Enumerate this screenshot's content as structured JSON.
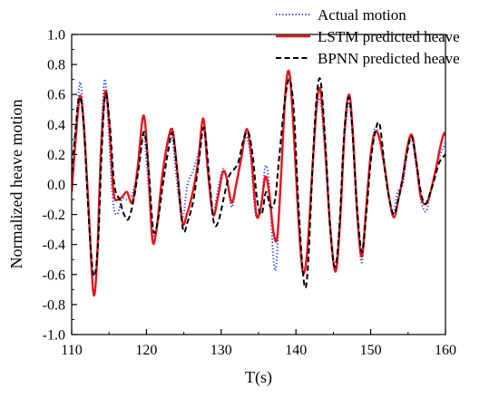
{
  "chart_data": {
    "type": "line",
    "title": "",
    "xlabel": "T(s)",
    "ylabel": "Normalized heave motion",
    "xlim": [
      110,
      160
    ],
    "ylim": [
      -1.0,
      1.0
    ],
    "x_ticks": [
      110,
      120,
      130,
      140,
      150,
      160
    ],
    "x_tick_labels": [
      "110",
      "120",
      "130",
      "140",
      "150",
      "160"
    ],
    "y_ticks": [
      -1.0,
      -0.8,
      -0.6,
      -0.4,
      -0.2,
      0.0,
      0.2,
      0.4,
      0.6,
      0.8,
      1.0
    ],
    "y_tick_labels": [
      "-1.0",
      "-0.8",
      "-0.6",
      "-0.4",
      "-0.2",
      "0.0",
      "0.2",
      "0.4",
      "0.6",
      "0.8",
      "1.0"
    ],
    "grid": false,
    "legend_position": "top-right",
    "series": [
      {
        "name": "Actual motion",
        "color": "#1f3fe0",
        "style": "dotted",
        "points": [
          [
            110,
            -0.02
          ],
          [
            110.5,
            0.3
          ],
          [
            111.1,
            0.68
          ],
          [
            111.6,
            0.45
          ],
          [
            112.2,
            -0.1
          ],
          [
            112.9,
            -0.73
          ],
          [
            113.4,
            -0.45
          ],
          [
            113.9,
            0.25
          ],
          [
            114.4,
            0.7
          ],
          [
            114.9,
            0.4
          ],
          [
            115.5,
            -0.1
          ],
          [
            116.1,
            -0.2
          ],
          [
            116.7,
            -0.1
          ],
          [
            117.4,
            -0.1
          ],
          [
            118.2,
            -0.05
          ],
          [
            119.0,
            0.15
          ],
          [
            119.6,
            0.35
          ],
          [
            120.1,
            0.1
          ],
          [
            120.7,
            -0.28
          ],
          [
            121.3,
            -0.32
          ],
          [
            122.0,
            0.0
          ],
          [
            122.8,
            0.25
          ],
          [
            123.4,
            0.32
          ],
          [
            124.0,
            0.05
          ],
          [
            124.8,
            -0.22
          ],
          [
            125.5,
            0.0
          ],
          [
            126.3,
            0.1
          ],
          [
            127.0,
            0.22
          ],
          [
            127.6,
            0.38
          ],
          [
            128.3,
            0.05
          ],
          [
            128.9,
            -0.2
          ],
          [
            129.5,
            -0.05
          ],
          [
            130.2,
            0.1
          ],
          [
            130.7,
            0.05
          ],
          [
            131.4,
            -0.15
          ],
          [
            132.0,
            0.0
          ],
          [
            132.7,
            0.2
          ],
          [
            133.4,
            0.32
          ],
          [
            134.0,
            0.15
          ],
          [
            134.6,
            -0.2
          ],
          [
            135.3,
            -0.15
          ],
          [
            135.9,
            0.12
          ],
          [
            136.4,
            0.0
          ],
          [
            137.0,
            -0.5
          ],
          [
            137.4,
            -0.52
          ],
          [
            137.9,
            0.0
          ],
          [
            138.6,
            0.6
          ],
          [
            139.1,
            0.73
          ],
          [
            139.6,
            0.4
          ],
          [
            140.3,
            -0.2
          ],
          [
            140.9,
            -0.57
          ],
          [
            141.5,
            -0.45
          ],
          [
            142.2,
            0.1
          ],
          [
            142.8,
            0.5
          ],
          [
            143.3,
            0.55
          ],
          [
            143.9,
            0.2
          ],
          [
            144.6,
            -0.3
          ],
          [
            145.3,
            -0.55
          ],
          [
            145.9,
            -0.2
          ],
          [
            146.5,
            0.3
          ],
          [
            147.1,
            0.55
          ],
          [
            147.6,
            0.3
          ],
          [
            148.2,
            -0.2
          ],
          [
            148.8,
            -0.52
          ],
          [
            149.4,
            -0.15
          ],
          [
            150.0,
            0.2
          ],
          [
            150.6,
            0.38
          ],
          [
            151.2,
            0.3
          ],
          [
            151.9,
            0.1
          ],
          [
            152.5,
            -0.1
          ],
          [
            153.0,
            -0.2
          ],
          [
            153.6,
            -0.05
          ],
          [
            154.3,
            0.0
          ],
          [
            154.8,
            0.2
          ],
          [
            155.4,
            0.32
          ],
          [
            156.0,
            0.15
          ],
          [
            156.7,
            -0.1
          ],
          [
            157.4,
            -0.18
          ],
          [
            158.0,
            -0.05
          ],
          [
            158.7,
            0.1
          ],
          [
            159.3,
            0.2
          ],
          [
            160,
            0.28
          ]
        ]
      },
      {
        "name": "LSTM predicted heave",
        "color": "#e8141c",
        "style": "solid",
        "points": [
          [
            110,
            -0.05
          ],
          [
            110.5,
            0.28
          ],
          [
            111.1,
            0.59
          ],
          [
            111.6,
            0.4
          ],
          [
            112.2,
            -0.1
          ],
          [
            112.9,
            -0.72
          ],
          [
            113.4,
            -0.5
          ],
          [
            113.9,
            0.2
          ],
          [
            114.5,
            0.62
          ],
          [
            115.0,
            0.42
          ],
          [
            115.6,
            -0.05
          ],
          [
            116.2,
            -0.1
          ],
          [
            116.8,
            -0.08
          ],
          [
            117.4,
            -0.05
          ],
          [
            118.1,
            -0.12
          ],
          [
            118.8,
            0.1
          ],
          [
            119.6,
            0.46
          ],
          [
            120.2,
            0.15
          ],
          [
            120.8,
            -0.37
          ],
          [
            121.4,
            -0.28
          ],
          [
            122.1,
            0.05
          ],
          [
            122.9,
            0.3
          ],
          [
            123.5,
            0.36
          ],
          [
            124.1,
            0.1
          ],
          [
            124.8,
            -0.25
          ],
          [
            125.4,
            -0.2
          ],
          [
            126.2,
            -0.05
          ],
          [
            126.9,
            0.15
          ],
          [
            127.6,
            0.44
          ],
          [
            128.2,
            0.1
          ],
          [
            128.9,
            -0.2
          ],
          [
            129.5,
            -0.1
          ],
          [
            130.2,
            0.08
          ],
          [
            130.7,
            0.05
          ],
          [
            131.4,
            -0.12
          ],
          [
            132.0,
            0.0
          ],
          [
            132.7,
            0.18
          ],
          [
            133.4,
            0.37
          ],
          [
            134.0,
            0.2
          ],
          [
            134.7,
            -0.2
          ],
          [
            135.3,
            -0.15
          ],
          [
            135.9,
            0.05
          ],
          [
            136.4,
            -0.05
          ],
          [
            137.0,
            -0.32
          ],
          [
            137.5,
            -0.35
          ],
          [
            138.0,
            0.05
          ],
          [
            138.6,
            0.62
          ],
          [
            139.1,
            0.75
          ],
          [
            139.6,
            0.45
          ],
          [
            140.3,
            -0.2
          ],
          [
            140.9,
            -0.58
          ],
          [
            141.5,
            -0.45
          ],
          [
            142.2,
            0.1
          ],
          [
            142.8,
            0.55
          ],
          [
            143.3,
            0.62
          ],
          [
            143.9,
            0.25
          ],
          [
            144.6,
            -0.3
          ],
          [
            145.3,
            -0.58
          ],
          [
            145.9,
            -0.25
          ],
          [
            146.5,
            0.35
          ],
          [
            147.1,
            0.6
          ],
          [
            147.6,
            0.35
          ],
          [
            148.2,
            -0.2
          ],
          [
            148.8,
            -0.48
          ],
          [
            149.4,
            -0.15
          ],
          [
            150.0,
            0.2
          ],
          [
            150.6,
            0.35
          ],
          [
            151.2,
            0.3
          ],
          [
            151.9,
            0.1
          ],
          [
            152.5,
            -0.1
          ],
          [
            153.1,
            -0.22
          ],
          [
            153.7,
            -0.1
          ],
          [
            154.3,
            0.05
          ],
          [
            154.9,
            0.25
          ],
          [
            155.5,
            0.33
          ],
          [
            156.1,
            0.15
          ],
          [
            156.7,
            -0.08
          ],
          [
            157.4,
            -0.13
          ],
          [
            158.0,
            -0.05
          ],
          [
            158.7,
            0.1
          ],
          [
            159.3,
            0.25
          ],
          [
            159.8,
            0.34
          ],
          [
            160,
            0.33
          ]
        ]
      },
      {
        "name": "BPNN predicted heave",
        "color": "#000000",
        "style": "dashed",
        "points": [
          [
            110,
            0.08
          ],
          [
            110.5,
            0.35
          ],
          [
            111.0,
            0.58
          ],
          [
            111.6,
            0.42
          ],
          [
            112.2,
            -0.15
          ],
          [
            112.9,
            -0.6
          ],
          [
            113.5,
            -0.42
          ],
          [
            114.0,
            0.2
          ],
          [
            114.5,
            0.6
          ],
          [
            115.1,
            0.4
          ],
          [
            115.7,
            0.0
          ],
          [
            116.4,
            -0.1
          ],
          [
            117.0,
            -0.2
          ],
          [
            117.6,
            -0.23
          ],
          [
            118.3,
            -0.1
          ],
          [
            119.0,
            0.12
          ],
          [
            119.7,
            0.35
          ],
          [
            120.3,
            0.1
          ],
          [
            120.9,
            -0.3
          ],
          [
            121.5,
            -0.25
          ],
          [
            122.2,
            0.0
          ],
          [
            122.9,
            0.22
          ],
          [
            123.5,
            0.34
          ],
          [
            124.2,
            0.05
          ],
          [
            124.9,
            -0.3
          ],
          [
            125.5,
            -0.25
          ],
          [
            126.3,
            -0.1
          ],
          [
            127.0,
            0.15
          ],
          [
            127.7,
            0.38
          ],
          [
            128.4,
            0.05
          ],
          [
            129.0,
            -0.25
          ],
          [
            129.6,
            -0.25
          ],
          [
            130.3,
            -0.1
          ],
          [
            131.0,
            0.05
          ],
          [
            131.7,
            0.1
          ],
          [
            132.3,
            0.15
          ],
          [
            133.0,
            0.3
          ],
          [
            133.6,
            0.35
          ],
          [
            134.2,
            0.2
          ],
          [
            134.8,
            -0.1
          ],
          [
            135.4,
            -0.2
          ],
          [
            136.0,
            -0.05
          ],
          [
            136.6,
            -0.15
          ],
          [
            137.2,
            -0.1
          ],
          [
            137.8,
            0.2
          ],
          [
            138.5,
            0.55
          ],
          [
            139.1,
            0.7
          ],
          [
            139.7,
            0.5
          ],
          [
            140.4,
            -0.2
          ],
          [
            141.1,
            -0.66
          ],
          [
            141.6,
            -0.55
          ],
          [
            142.3,
            0.2
          ],
          [
            142.8,
            0.6
          ],
          [
            143.3,
            0.69
          ],
          [
            143.9,
            0.3
          ],
          [
            144.6,
            -0.3
          ],
          [
            145.2,
            -0.55
          ],
          [
            145.8,
            -0.3
          ],
          [
            146.4,
            0.3
          ],
          [
            147.0,
            0.58
          ],
          [
            147.5,
            0.4
          ],
          [
            148.1,
            -0.1
          ],
          [
            148.8,
            -0.45
          ],
          [
            149.4,
            -0.2
          ],
          [
            150.0,
            0.15
          ],
          [
            150.6,
            0.35
          ],
          [
            151.2,
            0.4
          ],
          [
            151.9,
            0.1
          ],
          [
            152.5,
            -0.1
          ],
          [
            153.1,
            -0.2
          ],
          [
            153.7,
            -0.1
          ],
          [
            154.3,
            0.05
          ],
          [
            154.9,
            0.22
          ],
          [
            155.5,
            0.32
          ],
          [
            156.1,
            0.15
          ],
          [
            156.7,
            -0.05
          ],
          [
            157.3,
            -0.13
          ],
          [
            158.0,
            -0.05
          ],
          [
            158.6,
            0.05
          ],
          [
            159.2,
            0.15
          ],
          [
            160,
            0.2
          ]
        ]
      }
    ]
  }
}
